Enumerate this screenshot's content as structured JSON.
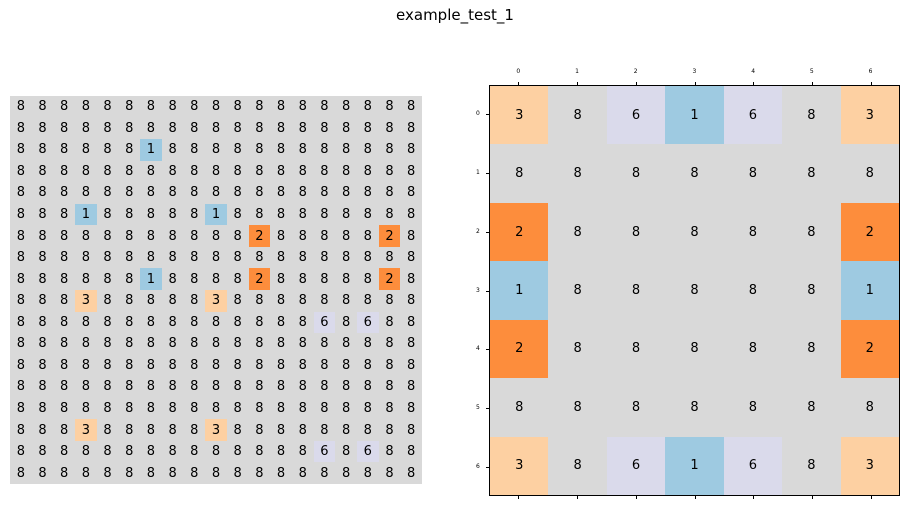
{
  "title": "example_test_1",
  "colors": {
    "8": "#d9d9d9",
    "1": "#9ecae1",
    "2": "#fd8d3c",
    "3": "#fdd0a2",
    "6": "#dadaeb"
  },
  "left_grid": [
    [
      "8",
      "8",
      "8",
      "8",
      "8",
      "8",
      "8",
      "8",
      "8",
      "8",
      "8",
      "8",
      "8",
      "8",
      "8",
      "8",
      "8",
      "8",
      "8"
    ],
    [
      "8",
      "8",
      "8",
      "8",
      "8",
      "8",
      "8",
      "8",
      "8",
      "8",
      "8",
      "8",
      "8",
      "8",
      "8",
      "8",
      "8",
      "8",
      "8"
    ],
    [
      "8",
      "8",
      "8",
      "8",
      "8",
      "8",
      "1",
      "8",
      "8",
      "8",
      "8",
      "8",
      "8",
      "8",
      "8",
      "8",
      "8",
      "8",
      "8"
    ],
    [
      "8",
      "8",
      "8",
      "8",
      "8",
      "8",
      "8",
      "8",
      "8",
      "8",
      "8",
      "8",
      "8",
      "8",
      "8",
      "8",
      "8",
      "8",
      "8"
    ],
    [
      "8",
      "8",
      "8",
      "8",
      "8",
      "8",
      "8",
      "8",
      "8",
      "8",
      "8",
      "8",
      "8",
      "8",
      "8",
      "8",
      "8",
      "8",
      "8"
    ],
    [
      "8",
      "8",
      "8",
      "1",
      "8",
      "8",
      "8",
      "8",
      "8",
      "1",
      "8",
      "8",
      "8",
      "8",
      "8",
      "8",
      "8",
      "8",
      "8"
    ],
    [
      "8",
      "8",
      "8",
      "8",
      "8",
      "8",
      "8",
      "8",
      "8",
      "8",
      "8",
      "2",
      "8",
      "8",
      "8",
      "8",
      "8",
      "2",
      "8"
    ],
    [
      "8",
      "8",
      "8",
      "8",
      "8",
      "8",
      "8",
      "8",
      "8",
      "8",
      "8",
      "8",
      "8",
      "8",
      "8",
      "8",
      "8",
      "8",
      "8"
    ],
    [
      "8",
      "8",
      "8",
      "8",
      "8",
      "8",
      "1",
      "8",
      "8",
      "8",
      "8",
      "2",
      "8",
      "8",
      "8",
      "8",
      "8",
      "2",
      "8"
    ],
    [
      "8",
      "8",
      "8",
      "3",
      "8",
      "8",
      "8",
      "8",
      "8",
      "3",
      "8",
      "8",
      "8",
      "8",
      "8",
      "8",
      "8",
      "8",
      "8"
    ],
    [
      "8",
      "8",
      "8",
      "8",
      "8",
      "8",
      "8",
      "8",
      "8",
      "8",
      "8",
      "8",
      "8",
      "8",
      "6",
      "8",
      "6",
      "8",
      "8"
    ],
    [
      "8",
      "8",
      "8",
      "8",
      "8",
      "8",
      "8",
      "8",
      "8",
      "8",
      "8",
      "8",
      "8",
      "8",
      "8",
      "8",
      "8",
      "8",
      "8"
    ],
    [
      "8",
      "8",
      "8",
      "8",
      "8",
      "8",
      "8",
      "8",
      "8",
      "8",
      "8",
      "8",
      "8",
      "8",
      "8",
      "8",
      "8",
      "8",
      "8"
    ],
    [
      "8",
      "8",
      "8",
      "8",
      "8",
      "8",
      "8",
      "8",
      "8",
      "8",
      "8",
      "8",
      "8",
      "8",
      "8",
      "8",
      "8",
      "8",
      "8"
    ],
    [
      "8",
      "8",
      "8",
      "8",
      "8",
      "8",
      "8",
      "8",
      "8",
      "8",
      "8",
      "8",
      "8",
      "8",
      "8",
      "8",
      "8",
      "8",
      "8"
    ],
    [
      "8",
      "8",
      "8",
      "3",
      "8",
      "8",
      "8",
      "8",
      "8",
      "3",
      "8",
      "8",
      "8",
      "8",
      "8",
      "8",
      "8",
      "8",
      "8"
    ],
    [
      "8",
      "8",
      "8",
      "8",
      "8",
      "8",
      "8",
      "8",
      "8",
      "8",
      "8",
      "8",
      "8",
      "8",
      "6",
      "8",
      "6",
      "8",
      "8"
    ],
    [
      "8",
      "8",
      "8",
      "8",
      "8",
      "8",
      "8",
      "8",
      "8",
      "8",
      "8",
      "8",
      "8",
      "8",
      "8",
      "8",
      "8",
      "8",
      "8"
    ]
  ],
  "right_grid": [
    [
      "3",
      "8",
      "6",
      "1",
      "6",
      "8",
      "3"
    ],
    [
      "8",
      "8",
      "8",
      "8",
      "8",
      "8",
      "8"
    ],
    [
      "2",
      "8",
      "8",
      "8",
      "8",
      "8",
      "2"
    ],
    [
      "1",
      "8",
      "8",
      "8",
      "8",
      "8",
      "1"
    ],
    [
      "2",
      "8",
      "8",
      "8",
      "8",
      "8",
      "2"
    ],
    [
      "8",
      "8",
      "8",
      "8",
      "8",
      "8",
      "8"
    ],
    [
      "3",
      "8",
      "6",
      "1",
      "6",
      "8",
      "3"
    ]
  ],
  "right_ticks": [
    "0",
    "1",
    "2",
    "3",
    "4",
    "5",
    "6"
  ]
}
